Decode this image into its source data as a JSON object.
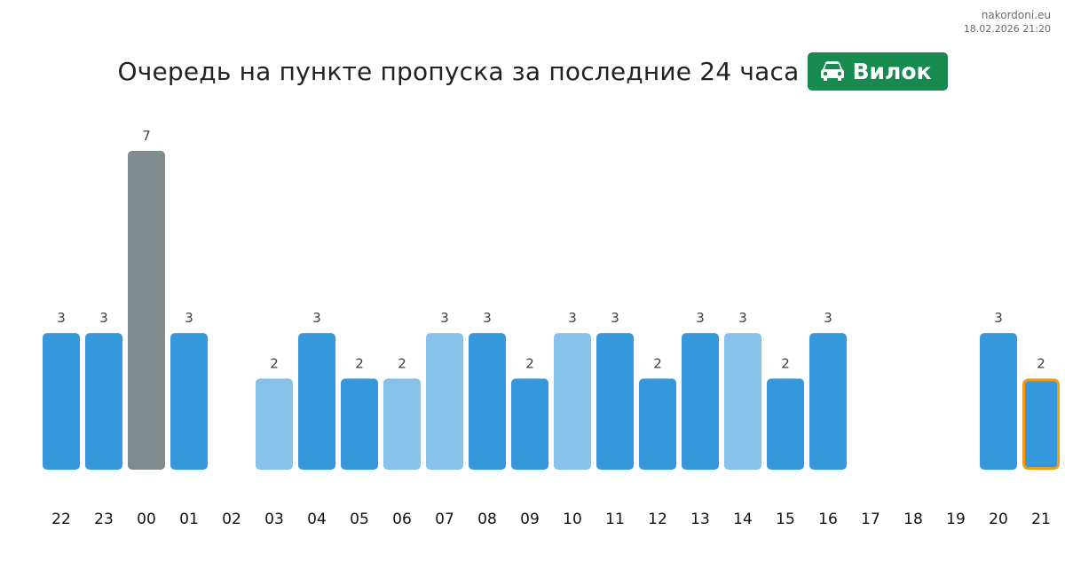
{
  "brand": {
    "site": "nakordoni.eu",
    "timestamp": "18.02.2026 21:20"
  },
  "header": {
    "title": "Очередь на пункте пропуска за последние 24 часа",
    "checkpoint": "Вилок",
    "badge_icon": "car-icon",
    "badge_color": "#178a4f"
  },
  "chart_data": {
    "type": "bar",
    "categories": [
      "22",
      "23",
      "00",
      "01",
      "02",
      "03",
      "04",
      "05",
      "06",
      "07",
      "08",
      "09",
      "10",
      "11",
      "12",
      "13",
      "14",
      "15",
      "16",
      "17",
      "18",
      "19",
      "20",
      "21"
    ],
    "values": [
      3,
      3,
      7,
      3,
      null,
      2,
      3,
      2,
      2,
      3,
      3,
      2,
      3,
      3,
      2,
      3,
      3,
      2,
      3,
      null,
      null,
      null,
      3,
      2
    ],
    "ylim": [
      0,
      7
    ],
    "grid": false,
    "colors": {
      "default": "#3498db",
      "light": "#85c1e9",
      "peak": "#7f8c8d",
      "current_outline": "#f39c12"
    },
    "light_bars": [
      "03",
      "06",
      "07",
      "10",
      "14"
    ],
    "peak_bar": "00",
    "current_bar": "21"
  }
}
